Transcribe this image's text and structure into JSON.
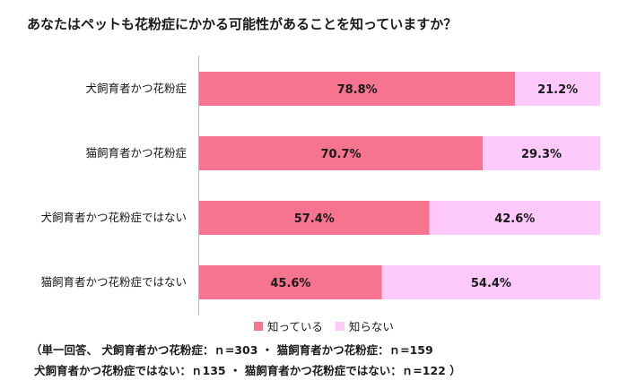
{
  "title": "あなたはペットも花粉症にかかる可能性があることを知っていますか？",
  "colors": {
    "known": "#f77491",
    "unknown": "#fdc9fb",
    "axis": "#bbbbbb"
  },
  "legend": {
    "known": "知っている",
    "unknown": "知らない"
  },
  "chart_data": {
    "type": "bar",
    "orientation": "horizontal",
    "stacked": true,
    "categories": [
      "犬飼育者かつ花粉症",
      "猫飼育者かつ花粉症",
      "犬飼育者かつ花粉症ではない",
      "猫飼育者かつ花粉症ではない"
    ],
    "series": [
      {
        "name": "知っている",
        "values": [
          78.8,
          70.7,
          57.4,
          45.6
        ],
        "labels": [
          "78.8%",
          "70.7%",
          "57.4%",
          "45.6%"
        ]
      },
      {
        "name": "知らない",
        "values": [
          21.2,
          29.3,
          42.6,
          54.4
        ],
        "labels": [
          "21.2%",
          "29.3%",
          "42.6%",
          "54.4%"
        ]
      }
    ],
    "xlim": [
      0,
      100
    ],
    "grid": false,
    "legend_position": "bottom"
  },
  "notes": {
    "line1": "（単一回答、 犬飼育者かつ花粉症：ｎ=303 ・ 猫飼育者かつ花粉症：ｎ=159",
    "line2": "犬飼育者かつ花粉症ではない：ｎ135 ・ 猫飼育者かつ花粉症ではない：ｎ=122 ）"
  }
}
